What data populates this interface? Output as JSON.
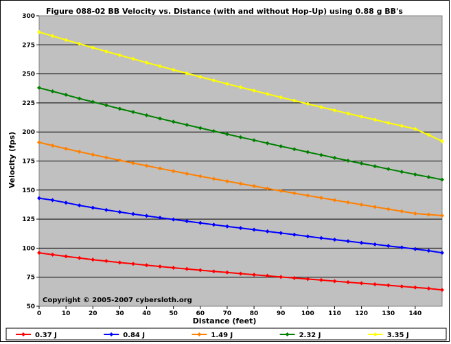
{
  "chart_data": {
    "type": "line",
    "title": "Figure 088-02  BB Velocity vs. Distance (with and without Hop-Up) using 0.88 g BB's",
    "xlabel": "Distance (feet)",
    "ylabel": "Velocity (fps)",
    "xlim": [
      0,
      150
    ],
    "ylim": [
      50,
      300
    ],
    "x_ticks": [
      "0",
      "10",
      "20",
      "30",
      "40",
      "50",
      "60",
      "70",
      "80",
      "90",
      "100",
      "110",
      "120",
      "130",
      "140"
    ],
    "y_ticks": [
      "50",
      "75",
      "100",
      "125",
      "150",
      "175",
      "200",
      "225",
      "250",
      "275",
      "300"
    ],
    "grid": "horizontal",
    "legend_position": "bottom",
    "annotation": "Copyright © 2005-2007 cybersloth.org",
    "x": [
      0,
      5,
      10,
      15,
      20,
      25,
      30,
      35,
      40,
      45,
      50,
      55,
      60,
      65,
      70,
      75,
      80,
      85,
      90,
      95,
      100,
      105,
      110,
      115,
      120,
      125,
      130,
      135,
      140,
      145,
      150
    ],
    "series": [
      {
        "name": "0.37 J",
        "color": "#ff0000",
        "values": [
          96,
          94.4,
          92.9,
          91.5,
          90.1,
          88.9,
          87.6,
          86.5,
          85.3,
          84.2,
          83.1,
          82.1,
          81.0,
          80.0,
          79.1,
          78.1,
          77.1,
          76.2,
          75.2,
          74.3,
          73.4,
          72.5,
          71.6,
          70.7,
          69.8,
          68.9,
          68.0,
          67.1,
          66.2,
          65.3,
          64
        ]
      },
      {
        "name": "0.84 J",
        "color": "#0000ff",
        "values": [
          143,
          141.3,
          139.1,
          136.8,
          134.8,
          132.9,
          131.1,
          129.4,
          127.8,
          126.2,
          124.7,
          123.2,
          121.7,
          120.2,
          118.7,
          117.3,
          115.9,
          114.4,
          113.0,
          111.6,
          110.1,
          108.7,
          107.3,
          106.0,
          104.6,
          103.3,
          101.9,
          100.6,
          99.2,
          97.8,
          96
        ]
      },
      {
        "name": "1.49 J",
        "color": "#ff8000",
        "values": [
          191,
          188.3,
          185.6,
          183.0,
          180.5,
          178.0,
          175.6,
          173.2,
          170.9,
          168.6,
          166.3,
          164.1,
          161.9,
          159.7,
          157.6,
          155.5,
          153.4,
          151.3,
          149.3,
          147.3,
          145.3,
          143.3,
          141.3,
          139.4,
          137.4,
          135.5,
          133.6,
          131.7,
          129.8,
          128.9,
          128
        ]
      },
      {
        "name": "2.32 J",
        "color": "#008000",
        "values": [
          238,
          235,
          232,
          228.8,
          225.9,
          223,
          220,
          217.2,
          214.4,
          211.6,
          208.8,
          206.1,
          203.4,
          200.7,
          198.1,
          195.5,
          192.9,
          190.3,
          187.7,
          185.2,
          182.7,
          180.2,
          177.7,
          175.3,
          172.9,
          170.5,
          168.1,
          165.7,
          163.4,
          161.2,
          159
        ]
      },
      {
        "name": "3.35 J",
        "color": "#ffff00",
        "values": [
          286,
          282.6,
          279.2,
          275.9,
          272.6,
          269.3,
          266.1,
          262.9,
          259.7,
          256.6,
          253.5,
          250.4,
          247.4,
          244.4,
          241.4,
          238.5,
          235.6,
          232.7,
          229.8,
          227,
          224.2,
          221.4,
          218.6,
          215.9,
          213.2,
          210.5,
          207.8,
          205.2,
          202.6,
          197.5,
          192
        ]
      }
    ]
  }
}
